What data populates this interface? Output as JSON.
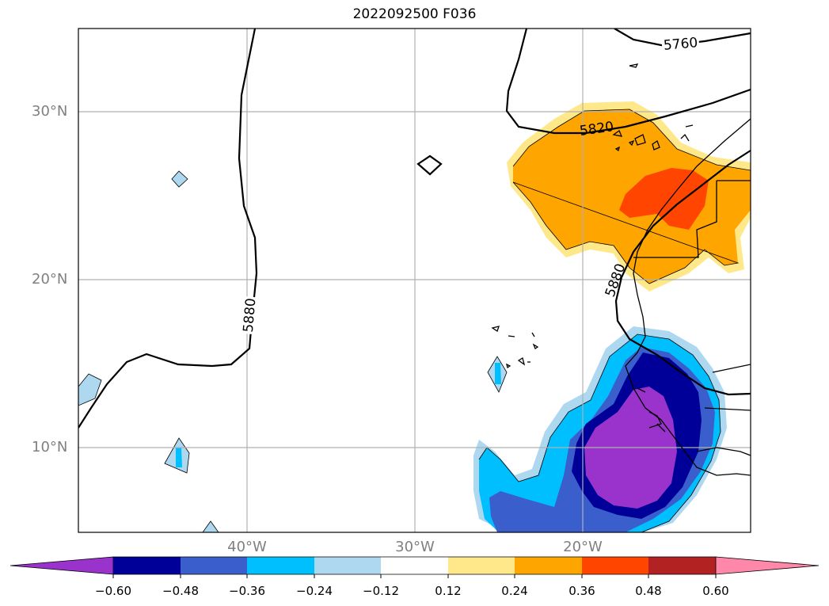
{
  "title": "2022092500 F036",
  "lat_labels": [
    "30°N",
    "20°N",
    "10°N"
  ],
  "lon_labels": [
    "40°W",
    "30°W",
    "20°W"
  ],
  "contour_labels": [
    "5760",
    "5820",
    "5880",
    "5880"
  ],
  "colorbar": {
    "ticks": [
      "−0.60",
      "−0.48",
      "−0.36",
      "−0.24",
      "−0.12",
      "0.12",
      "0.24",
      "0.36",
      "0.48",
      "0.60"
    ],
    "colors": [
      "#9933cc",
      "#000099",
      "#3a5fcd",
      "#00bfff",
      "#add8f0",
      "#ffffff",
      "#ffe88a",
      "#ffa500",
      "#ff4500",
      "#b22222",
      "#ff88aa"
    ]
  }
}
